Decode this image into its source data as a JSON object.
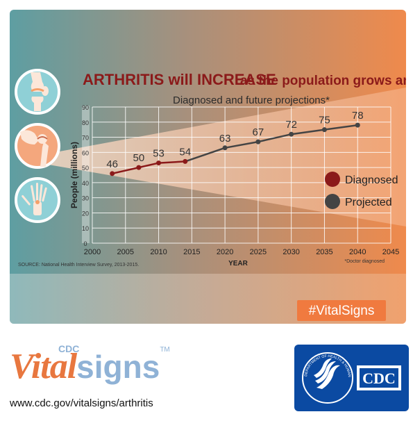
{
  "header": {
    "title_highlight": "ARTHRITIS will INCREASE",
    "title_rest": "as the population grows and ages",
    "subtitle": "Diagnosed and future projections*"
  },
  "chart_data": {
    "type": "line",
    "title": "ARTHRITIS will INCREASE as the population grows and ages",
    "subtitle": "Diagnosed and future projections*",
    "xlabel": "YEAR",
    "ylabel": "People (millions)",
    "xlim": [
      2000,
      2045
    ],
    "ylim": [
      0,
      90
    ],
    "xticks": [
      2000,
      2005,
      2010,
      2015,
      2020,
      2025,
      2030,
      2035,
      2040,
      2045
    ],
    "yticks": [
      0,
      10,
      20,
      30,
      40,
      50,
      60,
      70,
      80,
      90
    ],
    "grid": true,
    "legend_position": "right",
    "series": [
      {
        "name": "Diagnosed",
        "color": "#8b1a1a",
        "points": [
          {
            "x": 2003,
            "y": 46,
            "label": "46"
          },
          {
            "x": 2007,
            "y": 50,
            "label": "50"
          },
          {
            "x": 2010,
            "y": 53,
            "label": "53"
          },
          {
            "x": 2014,
            "y": 54,
            "label": "54"
          }
        ]
      },
      {
        "name": "Projected",
        "color": "#444444",
        "points": [
          {
            "x": 2020,
            "y": 63,
            "label": "63"
          },
          {
            "x": 2025,
            "y": 67,
            "label": "67"
          },
          {
            "x": 2030,
            "y": 72,
            "label": "72"
          },
          {
            "x": 2035,
            "y": 75,
            "label": "75"
          },
          {
            "x": 2040,
            "y": 78,
            "label": "78"
          }
        ]
      }
    ],
    "source": "SOURCE: National Health Interview Survey, 2013-2015.",
    "footnote": "*Doctor diagnosed"
  },
  "hashtag": "#VitalSigns",
  "brand": {
    "vital": "Vital",
    "signs": "signs",
    "cdc_small": "CDC",
    "tm": "TM",
    "url": "www.cdc.gov/vitalsigns/arthritis",
    "logo_text": "CDC",
    "seal_text": "DEPARTMENT OF HEALTH & HUMAN SERVICES · USA"
  },
  "colors": {
    "diagnosed": "#8b1a1a",
    "projected": "#444444",
    "title_red": "#8b1a1a",
    "accent_orange": "#f07a3f",
    "cdc_blue": "#0b4aa2",
    "teal": "#5f9da0"
  },
  "icons": [
    "knee-xray-icon",
    "hip-xray-icon",
    "hand-xray-icon"
  ]
}
